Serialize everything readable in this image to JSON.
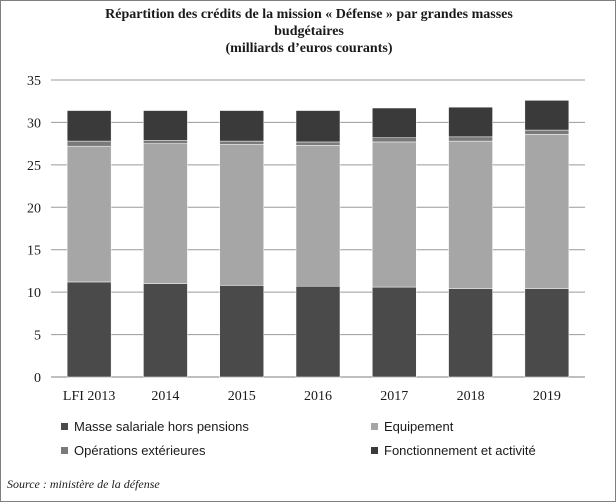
{
  "title_lines": [
    "Répartition des crédits de la mission « Défense » par grandes masses",
    "budgétaires",
    "(milliards d’euros courants)"
  ],
  "source": "Source : ministère de la défense",
  "chart_data": {
    "type": "bar",
    "stacked": true,
    "categories": [
      "LFI 2013",
      "2014",
      "2015",
      "2016",
      "2017",
      "2018",
      "2019"
    ],
    "ylim": [
      0,
      35
    ],
    "yticks": [
      0,
      5,
      10,
      15,
      20,
      25,
      30,
      35
    ],
    "grid": true,
    "legend_position": "bottom",
    "series": [
      {
        "name": "Masse salariale hors pensions",
        "color": "#4a4a4a",
        "values": [
          11.2,
          11.0,
          10.8,
          10.7,
          10.6,
          10.4,
          10.4
        ]
      },
      {
        "name": "Equipement",
        "color": "#a6a6a6",
        "values": [
          16.0,
          16.5,
          16.6,
          16.6,
          17.1,
          17.4,
          18.2
        ]
      },
      {
        "name": "Opérations extérieures",
        "color": "#7a7a7a",
        "values": [
          0.6,
          0.4,
          0.4,
          0.4,
          0.5,
          0.5,
          0.5
        ]
      },
      {
        "name": "Fonctionnement et activité",
        "color": "#3a3a3a",
        "values": [
          3.6,
          3.5,
          3.6,
          3.7,
          3.5,
          3.5,
          3.5
        ]
      }
    ]
  }
}
